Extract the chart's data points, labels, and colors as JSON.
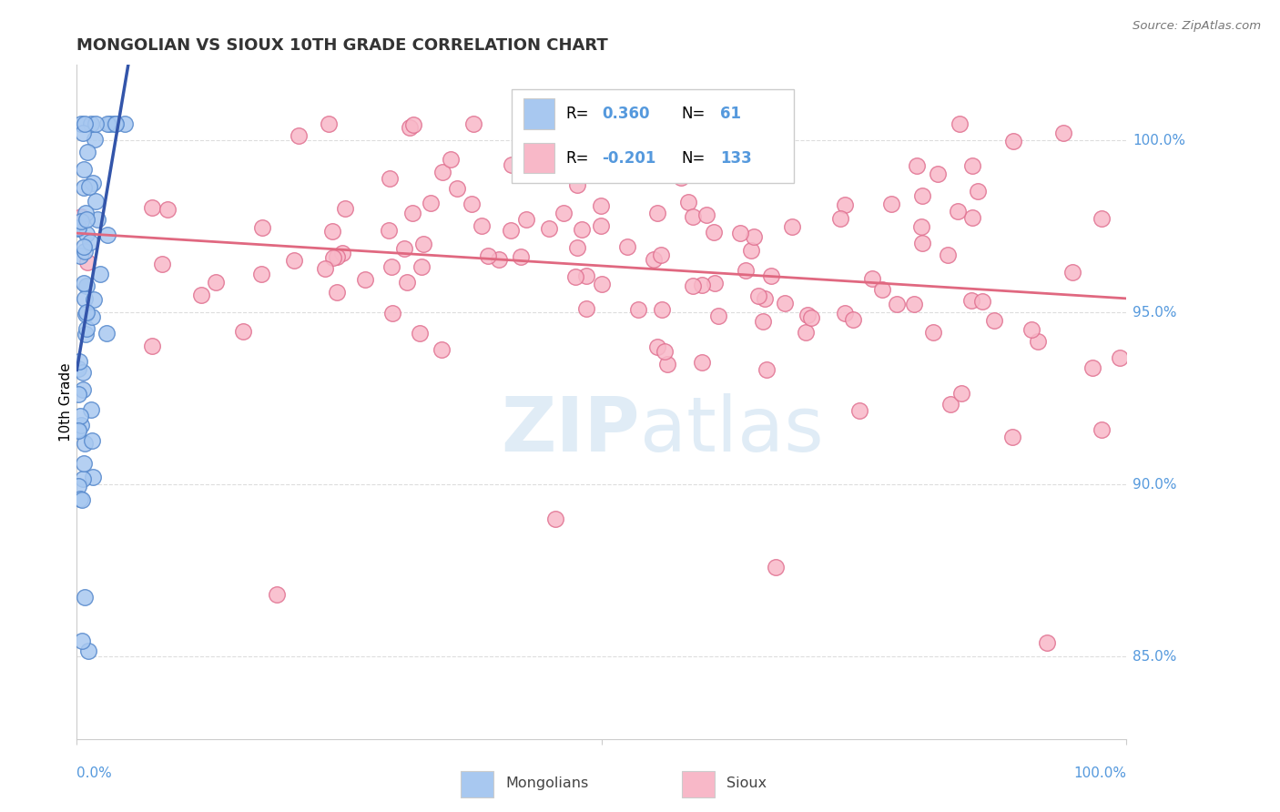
{
  "title": "MONGOLIAN VS SIOUX 10TH GRADE CORRELATION CHART",
  "source": "Source: ZipAtlas.com",
  "ylabel": "10th Grade",
  "ytick_labels": [
    "85.0%",
    "90.0%",
    "95.0%",
    "100.0%"
  ],
  "ytick_values": [
    0.85,
    0.9,
    0.95,
    1.0
  ],
  "xlim": [
    0.0,
    1.0
  ],
  "ylim": [
    0.826,
    1.022
  ],
  "mongolian_R": 0.36,
  "mongolian_N": 61,
  "sioux_R": -0.201,
  "sioux_N": 133,
  "blue_scatter_face": "#a8c8f0",
  "blue_scatter_edge": "#5588cc",
  "pink_scatter_face": "#f8b8c8",
  "pink_scatter_edge": "#e07090",
  "blue_line_color": "#3355aa",
  "pink_line_color": "#e06880",
  "legend_box_color": "#e8f0f8",
  "legend_border_color": "#cccccc",
  "grid_color": "#dddddd",
  "axis_label_color": "#5599dd",
  "title_color": "#333333",
  "source_color": "#777777",
  "watermark_color": "#cce0f0"
}
